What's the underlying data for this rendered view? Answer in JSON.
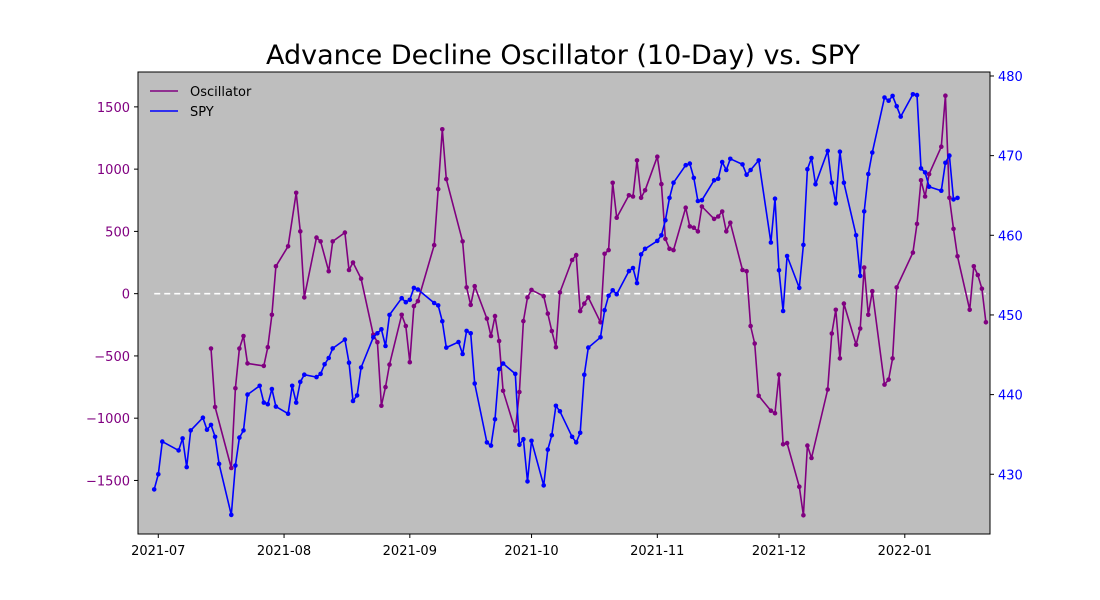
{
  "chart_data": {
    "type": "line",
    "title": "Advance Decline Oscillator (10-Day) vs. SPY",
    "xlabel": "",
    "ylabel_left": "",
    "ylabel_right": "",
    "x_ticks": [
      "2021-07",
      "2021-08",
      "2021-09",
      "2021-10",
      "2021-11",
      "2021-12",
      "2022-01"
    ],
    "x_range": [
      "2021-06-26",
      "2022-01-22"
    ],
    "y_left": {
      "range": [
        -1930,
        1780
      ],
      "ticks": [
        -1500,
        -1000,
        -500,
        0,
        500,
        1000,
        1500
      ],
      "tick_labels": [
        "−1500",
        "−1000",
        "−500",
        "0",
        "500",
        "1000",
        "1500"
      ],
      "color": "#800080"
    },
    "y_right": {
      "range": [
        422.5,
        480.5
      ],
      "ticks": [
        430,
        440,
        450,
        460,
        470,
        480
      ],
      "tick_labels": [
        "430",
        "440",
        "450",
        "460",
        "470",
        "480"
      ],
      "color": "#0000ff"
    },
    "zero_line": {
      "value": 0,
      "color": "#ffffff",
      "style": "dashed"
    },
    "plot_background": "#bebebe",
    "legend": {
      "location": "upper-left",
      "entries": [
        "Oscillator",
        "SPY"
      ]
    },
    "grid": false,
    "series": [
      {
        "name": "Oscillator",
        "axis": "left",
        "color": "#800080",
        "points": [
          [
            "2021-07-14",
            -440
          ],
          [
            "2021-07-15",
            -910
          ],
          [
            "2021-07-19",
            -1400
          ],
          [
            "2021-07-20",
            -760
          ],
          [
            "2021-07-21",
            -440
          ],
          [
            "2021-07-22",
            -340
          ],
          [
            "2021-07-23",
            -560
          ],
          [
            "2021-07-27",
            -580
          ],
          [
            "2021-07-28",
            -430
          ],
          [
            "2021-07-29",
            -170
          ],
          [
            "2021-07-30",
            220
          ],
          [
            "2021-08-02",
            380
          ],
          [
            "2021-08-04",
            810
          ],
          [
            "2021-08-05",
            500
          ],
          [
            "2021-08-06",
            -30
          ],
          [
            "2021-08-09",
            450
          ],
          [
            "2021-08-10",
            420
          ],
          [
            "2021-08-12",
            180
          ],
          [
            "2021-08-13",
            420
          ],
          [
            "2021-08-16",
            490
          ],
          [
            "2021-08-17",
            190
          ],
          [
            "2021-08-18",
            250
          ],
          [
            "2021-08-20",
            120
          ],
          [
            "2021-08-23",
            -330
          ],
          [
            "2021-08-24",
            -390
          ],
          [
            "2021-08-25",
            -900
          ],
          [
            "2021-08-26",
            -750
          ],
          [
            "2021-08-27",
            -570
          ],
          [
            "2021-08-30",
            -170
          ],
          [
            "2021-08-31",
            -260
          ],
          [
            "2021-09-01",
            -550
          ],
          [
            "2021-09-02",
            -100
          ],
          [
            "2021-09-03",
            -60
          ],
          [
            "2021-09-07",
            390
          ],
          [
            "2021-09-08",
            840
          ],
          [
            "2021-09-09",
            1320
          ],
          [
            "2021-09-10",
            920
          ],
          [
            "2021-09-14",
            420
          ],
          [
            "2021-09-15",
            50
          ],
          [
            "2021-09-16",
            -90
          ],
          [
            "2021-09-17",
            60
          ],
          [
            "2021-09-20",
            -200
          ],
          [
            "2021-09-21",
            -340
          ],
          [
            "2021-09-22",
            -180
          ],
          [
            "2021-09-23",
            -380
          ],
          [
            "2021-09-24",
            -780
          ],
          [
            "2021-09-27",
            -1100
          ],
          [
            "2021-09-28",
            -790
          ],
          [
            "2021-09-29",
            -220
          ],
          [
            "2021-09-30",
            -30
          ],
          [
            "2021-10-01",
            30
          ],
          [
            "2021-10-04",
            -20
          ],
          [
            "2021-10-05",
            -160
          ],
          [
            "2021-10-06",
            -300
          ],
          [
            "2021-10-07",
            -430
          ],
          [
            "2021-10-08",
            10
          ],
          [
            "2021-10-11",
            270
          ],
          [
            "2021-10-12",
            310
          ],
          [
            "2021-10-13",
            -140
          ],
          [
            "2021-10-14",
            -80
          ],
          [
            "2021-10-15",
            -30
          ],
          [
            "2021-10-18",
            -230
          ],
          [
            "2021-10-19",
            320
          ],
          [
            "2021-10-20",
            350
          ],
          [
            "2021-10-21",
            890
          ],
          [
            "2021-10-22",
            610
          ],
          [
            "2021-10-25",
            790
          ],
          [
            "2021-10-26",
            780
          ],
          [
            "2021-10-27",
            1070
          ],
          [
            "2021-10-28",
            770
          ],
          [
            "2021-10-29",
            830
          ],
          [
            "2021-11-01",
            1100
          ],
          [
            "2021-11-02",
            880
          ],
          [
            "2021-11-03",
            440
          ],
          [
            "2021-11-04",
            360
          ],
          [
            "2021-11-05",
            350
          ],
          [
            "2021-11-08",
            690
          ],
          [
            "2021-11-09",
            540
          ],
          [
            "2021-11-10",
            530
          ],
          [
            "2021-11-11",
            500
          ],
          [
            "2021-11-12",
            700
          ],
          [
            "2021-11-15",
            600
          ],
          [
            "2021-11-16",
            620
          ],
          [
            "2021-11-17",
            660
          ],
          [
            "2021-11-18",
            500
          ],
          [
            "2021-11-19",
            570
          ],
          [
            "2021-11-22",
            190
          ],
          [
            "2021-11-23",
            180
          ],
          [
            "2021-11-24",
            -260
          ],
          [
            "2021-11-25",
            -400
          ],
          [
            "2021-11-26",
            -820
          ],
          [
            "2021-11-29",
            -940
          ],
          [
            "2021-11-30",
            -960
          ],
          [
            "2021-12-01",
            -650
          ],
          [
            "2021-12-02",
            -1210
          ],
          [
            "2021-12-03",
            -1200
          ],
          [
            "2021-12-06",
            -1550
          ],
          [
            "2021-12-07",
            -1780
          ],
          [
            "2021-12-08",
            -1220
          ],
          [
            "2021-12-09",
            -1320
          ],
          [
            "2021-12-13",
            -770
          ],
          [
            "2021-12-14",
            -320
          ],
          [
            "2021-12-15",
            -130
          ],
          [
            "2021-12-16",
            -520
          ],
          [
            "2021-12-17",
            -80
          ],
          [
            "2021-12-20",
            -410
          ],
          [
            "2021-12-21",
            -280
          ],
          [
            "2021-12-22",
            210
          ],
          [
            "2021-12-23",
            -170
          ],
          [
            "2021-12-24",
            20
          ],
          [
            "2021-12-27",
            -730
          ],
          [
            "2021-12-28",
            -690
          ],
          [
            "2021-12-29",
            -520
          ],
          [
            "2021-12-30",
            50
          ],
          [
            "2022-01-03",
            330
          ],
          [
            "2022-01-04",
            560
          ],
          [
            "2022-01-05",
            910
          ],
          [
            "2022-01-06",
            780
          ],
          [
            "2022-01-07",
            960
          ],
          [
            "2022-01-10",
            1180
          ],
          [
            "2022-01-11",
            1590
          ],
          [
            "2022-01-12",
            770
          ],
          [
            "2022-01-13",
            520
          ],
          [
            "2022-01-14",
            300
          ],
          [
            "2022-01-17",
            -130
          ],
          [
            "2022-01-18",
            220
          ],
          [
            "2022-01-19",
            150
          ],
          [
            "2022-01-20",
            40
          ],
          [
            "2022-01-21",
            -230
          ]
        ]
      },
      {
        "name": "SPY",
        "axis": "right",
        "color": "#0000ff",
        "points": [
          [
            "2021-06-30",
            428.1
          ],
          [
            "2021-07-01",
            430.0
          ],
          [
            "2021-07-02",
            434.1
          ],
          [
            "2021-07-06",
            433.0
          ],
          [
            "2021-07-07",
            434.5
          ],
          [
            "2021-07-08",
            430.9
          ],
          [
            "2021-07-09",
            435.5
          ],
          [
            "2021-07-12",
            437.1
          ],
          [
            "2021-07-13",
            435.6
          ],
          [
            "2021-07-14",
            436.2
          ],
          [
            "2021-07-15",
            434.7
          ],
          [
            "2021-07-16",
            431.3
          ],
          [
            "2021-07-19",
            424.9
          ],
          [
            "2021-07-20",
            431.1
          ],
          [
            "2021-07-21",
            434.6
          ],
          [
            "2021-07-22",
            435.5
          ],
          [
            "2021-07-23",
            440.0
          ],
          [
            "2021-07-26",
            441.1
          ],
          [
            "2021-07-27",
            439.0
          ],
          [
            "2021-07-28",
            438.8
          ],
          [
            "2021-07-29",
            440.7
          ],
          [
            "2021-07-30",
            438.5
          ],
          [
            "2021-08-02",
            437.6
          ],
          [
            "2021-08-03",
            441.1
          ],
          [
            "2021-08-04",
            439.0
          ],
          [
            "2021-08-05",
            441.6
          ],
          [
            "2021-08-06",
            442.5
          ],
          [
            "2021-08-09",
            442.2
          ],
          [
            "2021-08-10",
            442.6
          ],
          [
            "2021-08-11",
            443.8
          ],
          [
            "2021-08-12",
            444.6
          ],
          [
            "2021-08-13",
            445.8
          ],
          [
            "2021-08-16",
            446.9
          ],
          [
            "2021-08-17",
            444.0
          ],
          [
            "2021-08-18",
            439.2
          ],
          [
            "2021-08-19",
            439.9
          ],
          [
            "2021-08-20",
            443.4
          ],
          [
            "2021-08-23",
            447.2
          ],
          [
            "2021-08-24",
            447.7
          ],
          [
            "2021-08-25",
            448.2
          ],
          [
            "2021-08-26",
            446.1
          ],
          [
            "2021-08-27",
            450.0
          ],
          [
            "2021-08-30",
            452.1
          ],
          [
            "2021-08-31",
            451.6
          ],
          [
            "2021-09-01",
            451.9
          ],
          [
            "2021-09-02",
            453.4
          ],
          [
            "2021-09-03",
            453.2
          ],
          [
            "2021-09-07",
            451.5
          ],
          [
            "2021-09-08",
            451.2
          ],
          [
            "2021-09-09",
            449.2
          ],
          [
            "2021-09-10",
            445.9
          ],
          [
            "2021-09-13",
            446.6
          ],
          [
            "2021-09-14",
            445.1
          ],
          [
            "2021-09-15",
            448.0
          ],
          [
            "2021-09-16",
            447.7
          ],
          [
            "2021-09-17",
            441.4
          ],
          [
            "2021-09-20",
            434.0
          ],
          [
            "2021-09-21",
            433.6
          ],
          [
            "2021-09-22",
            436.9
          ],
          [
            "2021-09-23",
            443.2
          ],
          [
            "2021-09-24",
            443.9
          ],
          [
            "2021-09-27",
            442.6
          ],
          [
            "2021-09-28",
            433.7
          ],
          [
            "2021-09-29",
            434.4
          ],
          [
            "2021-09-30",
            429.1
          ],
          [
            "2021-10-01",
            434.2
          ],
          [
            "2021-10-04",
            428.6
          ],
          [
            "2021-10-05",
            433.1
          ],
          [
            "2021-10-06",
            434.9
          ],
          [
            "2021-10-07",
            438.6
          ],
          [
            "2021-10-08",
            437.9
          ],
          [
            "2021-10-11",
            434.7
          ],
          [
            "2021-10-12",
            434.0
          ],
          [
            "2021-10-13",
            435.2
          ],
          [
            "2021-10-14",
            442.5
          ],
          [
            "2021-10-15",
            445.9
          ],
          [
            "2021-10-18",
            447.2
          ],
          [
            "2021-10-19",
            450.6
          ],
          [
            "2021-10-20",
            452.4
          ],
          [
            "2021-10-21",
            453.1
          ],
          [
            "2021-10-22",
            452.6
          ],
          [
            "2021-10-25",
            455.5
          ],
          [
            "2021-10-26",
            455.9
          ],
          [
            "2021-10-27",
            454.0
          ],
          [
            "2021-10-28",
            457.6
          ],
          [
            "2021-10-29",
            458.3
          ],
          [
            "2021-11-01",
            459.3
          ],
          [
            "2021-11-02",
            460.0
          ],
          [
            "2021-11-03",
            461.9
          ],
          [
            "2021-11-04",
            464.7
          ],
          [
            "2021-11-05",
            466.6
          ],
          [
            "2021-11-08",
            468.8
          ],
          [
            "2021-11-09",
            469.0
          ],
          [
            "2021-11-10",
            467.2
          ],
          [
            "2021-11-11",
            464.3
          ],
          [
            "2021-11-12",
            464.4
          ],
          [
            "2021-11-15",
            466.9
          ],
          [
            "2021-11-16",
            467.1
          ],
          [
            "2021-11-17",
            469.2
          ],
          [
            "2021-11-18",
            468.2
          ],
          [
            "2021-11-19",
            469.6
          ],
          [
            "2021-11-22",
            468.9
          ],
          [
            "2021-11-23",
            467.6
          ],
          [
            "2021-11-24",
            468.2
          ],
          [
            "2021-11-26",
            469.4
          ],
          [
            "2021-11-29",
            459.1
          ],
          [
            "2021-11-30",
            464.6
          ],
          [
            "2021-12-01",
            455.6
          ],
          [
            "2021-12-02",
            450.5
          ],
          [
            "2021-12-03",
            457.4
          ],
          [
            "2021-12-06",
            453.4
          ],
          [
            "2021-12-07",
            458.8
          ],
          [
            "2021-12-08",
            468.3
          ],
          [
            "2021-12-09",
            469.7
          ],
          [
            "2021-12-10",
            466.4
          ],
          [
            "2021-12-13",
            470.6
          ],
          [
            "2021-12-14",
            466.6
          ],
          [
            "2021-12-15",
            464.0
          ],
          [
            "2021-12-16",
            470.5
          ],
          [
            "2021-12-17",
            466.6
          ],
          [
            "2021-12-20",
            460.0
          ],
          [
            "2021-12-21",
            454.9
          ],
          [
            "2021-12-22",
            463.0
          ],
          [
            "2021-12-23",
            467.7
          ],
          [
            "2021-12-24",
            470.4
          ],
          [
            "2021-12-27",
            477.3
          ],
          [
            "2021-12-28",
            476.9
          ],
          [
            "2021-12-29",
            477.5
          ],
          [
            "2021-12-30",
            476.2
          ],
          [
            "2021-12-31",
            474.9
          ],
          [
            "2022-01-03",
            477.7
          ],
          [
            "2022-01-04",
            477.6
          ],
          [
            "2022-01-05",
            468.4
          ],
          [
            "2022-01-06",
            467.9
          ],
          [
            "2022-01-07",
            466.1
          ],
          [
            "2022-01-10",
            465.6
          ],
          [
            "2022-01-11",
            469.1
          ],
          [
            "2022-01-12",
            470.0
          ],
          [
            "2022-01-13",
            464.5
          ],
          [
            "2022-01-14",
            464.7
          ]
        ]
      }
    ]
  }
}
